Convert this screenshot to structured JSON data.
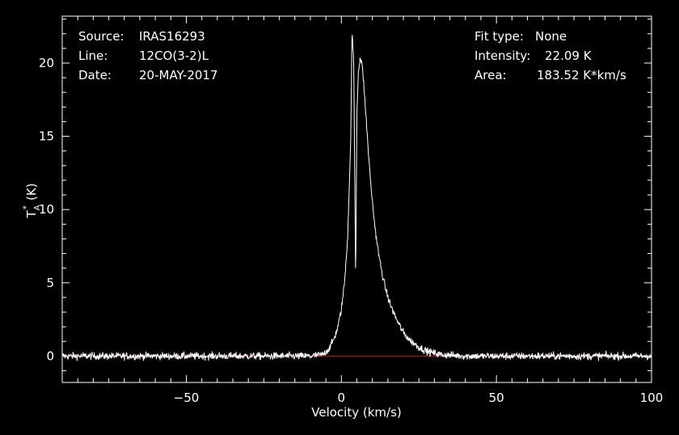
{
  "header": {
    "left": [
      {
        "key": "Source:",
        "value": "IRAS16293"
      },
      {
        "key": "Line:",
        "value": "12CO(3-2)L"
      },
      {
        "key": "Date:",
        "value": "20-MAY-2017"
      }
    ],
    "right": [
      {
        "key": "Fit type:",
        "value": "None"
      },
      {
        "key": "Intensity:",
        "value": "22.09 K"
      },
      {
        "key": "Area:",
        "value": "183.52 K*km/s"
      }
    ]
  },
  "colors": {
    "background": "#000000",
    "axes": "#ffffff",
    "spectrum": "#ffffff",
    "baseline": "#d01010"
  },
  "chart_data": {
    "type": "line",
    "xlabel": "Velocity (km/s)",
    "ylabel": "T_A^* (K)",
    "ylabel_main": "T",
    "ylabel_sub": "A",
    "ylabel_sup": "*",
    "ylabel_unit": "(K)",
    "xlim": [
      -90,
      100
    ],
    "ylim": [
      -1.8,
      23.2
    ],
    "xticks": [
      -50,
      0,
      50,
      100
    ],
    "xtick_labels": [
      "−50",
      "0",
      "50",
      "100"
    ],
    "yticks": [
      0,
      5,
      10,
      15,
      20
    ],
    "ytick_labels": [
      "0",
      "5",
      "10",
      "15",
      "20"
    ],
    "grid": false,
    "baseline_value": 0,
    "noise_rms": 0.18,
    "series": [
      {
        "kind": "spectrum",
        "x": [
          -90,
          -10,
          -6,
          -4,
          -3,
          -2,
          -1,
          0,
          1,
          2,
          3,
          3.4,
          4,
          4.6,
          5,
          5.5,
          6,
          6.5,
          7,
          8,
          9,
          10,
          11,
          12,
          13,
          14,
          15,
          16,
          18,
          20,
          22,
          25,
          28,
          32,
          40,
          100
        ],
        "y": [
          0,
          0,
          0.1,
          0.5,
          0.9,
          1.4,
          2.1,
          3.2,
          5.0,
          8.0,
          14.5,
          22.09,
          20.0,
          5.0,
          16.5,
          19.5,
          20.3,
          20.1,
          19.2,
          16.2,
          13.0,
          10.5,
          8.5,
          7.0,
          5.8,
          4.8,
          4.0,
          3.4,
          2.4,
          1.6,
          1.1,
          0.6,
          0.3,
          0.1,
          0,
          0
        ]
      }
    ]
  }
}
